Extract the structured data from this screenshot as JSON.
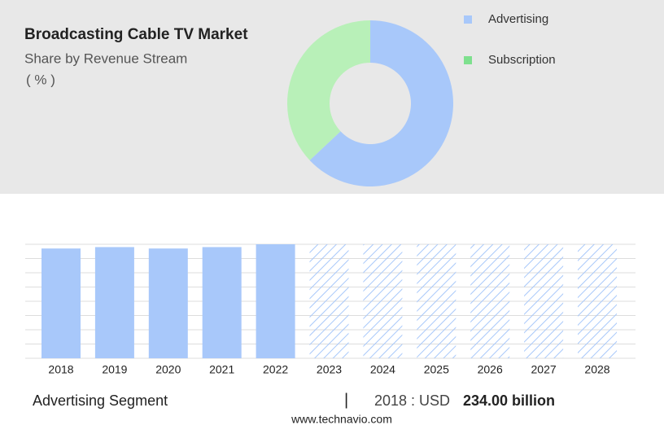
{
  "chart_data": [
    {
      "type": "donut",
      "title": "Broadcasting Cable TV Market",
      "subtitle": "Share by Revenue Stream",
      "unit_label": "( % )",
      "categories": [
        "Advertising",
        "Subscription"
      ],
      "values": [
        63,
        37
      ],
      "colors": [
        "#a8c8fa",
        "#b8f0b8"
      ],
      "legend_colors": [
        "#a8c8fa",
        "#7ee08e"
      ]
    },
    {
      "type": "bar",
      "categories": [
        "2018",
        "2019",
        "2020",
        "2021",
        "2022",
        "2023",
        "2024",
        "2025",
        "2026",
        "2027",
        "2028"
      ],
      "values": [
        234,
        237,
        234,
        237,
        243,
        null,
        null,
        null,
        null,
        null,
        null
      ],
      "color": "#a8c8fa",
      "ylim": [
        0,
        243
      ]
    }
  ],
  "footer": {
    "segment": "Advertising Segment",
    "separator": "|",
    "year_label": "2018 : USD",
    "value": "234.00 billion",
    "source": "www.technavio.com"
  }
}
